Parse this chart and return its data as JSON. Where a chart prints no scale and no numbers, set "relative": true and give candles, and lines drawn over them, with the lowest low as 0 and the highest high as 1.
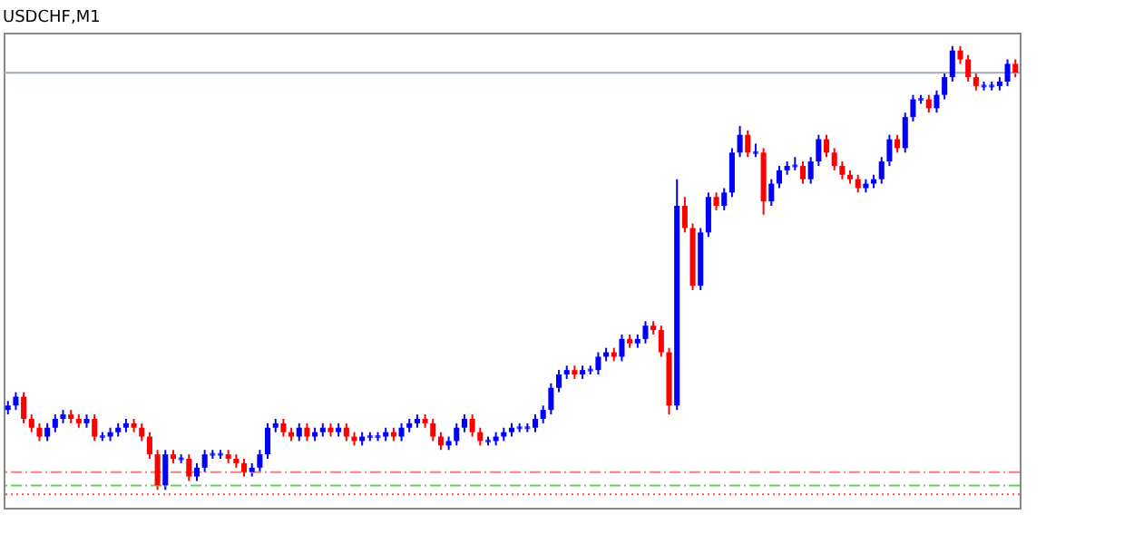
{
  "chart_data": {
    "type": "candlestick",
    "title": "USDCHF,M1",
    "relative": true,
    "categories": [
      null,
      null,
      null,
      null,
      null,
      null,
      null,
      null,
      null,
      null,
      null,
      null,
      null,
      null,
      null,
      null,
      null,
      null,
      null,
      null,
      null,
      null,
      null,
      null,
      null,
      null,
      null,
      null,
      null,
      null,
      null,
      null,
      null,
      null,
      null,
      null,
      null,
      null,
      null,
      null,
      null,
      null,
      null,
      null,
      null,
      null,
      null,
      null,
      null,
      null,
      null,
      null,
      null,
      null,
      null,
      null,
      null,
      null,
      null,
      null,
      null,
      null,
      null,
      null,
      null,
      null,
      null,
      null,
      null,
      null,
      null,
      null,
      null,
      null,
      null,
      null,
      null,
      null,
      null,
      null,
      null,
      null,
      null,
      null,
      null,
      null,
      null,
      null,
      null,
      null,
      null,
      null,
      null,
      null,
      null,
      null,
      null,
      null,
      null,
      null,
      null,
      null,
      null,
      null,
      null,
      null,
      null,
      null,
      null,
      null,
      null,
      null,
      null,
      null,
      null,
      null,
      null,
      null,
      null,
      null,
      null,
      null,
      null,
      null,
      null,
      null,
      null,
      null,
      null
    ],
    "ohlc": [
      [
        0.18,
        0.2,
        0.17,
        0.19
      ],
      [
        0.19,
        0.22,
        0.18,
        0.21
      ],
      [
        0.21,
        0.22,
        0.15,
        0.16
      ],
      [
        0.16,
        0.17,
        0.13,
        0.14
      ],
      [
        0.14,
        0.15,
        0.11,
        0.12
      ],
      [
        0.12,
        0.15,
        0.11,
        0.14
      ],
      [
        0.14,
        0.17,
        0.13,
        0.16
      ],
      [
        0.16,
        0.18,
        0.15,
        0.17
      ],
      [
        0.17,
        0.18,
        0.15,
        0.16
      ],
      [
        0.16,
        0.17,
        0.14,
        0.15
      ],
      [
        0.15,
        0.17,
        0.14,
        0.16
      ],
      [
        0.16,
        0.17,
        0.11,
        0.12
      ],
      [
        0.12,
        0.13,
        0.11,
        0.12
      ],
      [
        0.12,
        0.14,
        0.11,
        0.13
      ],
      [
        0.13,
        0.15,
        0.12,
        0.14
      ],
      [
        0.14,
        0.16,
        0.13,
        0.15
      ],
      [
        0.15,
        0.16,
        0.13,
        0.14
      ],
      [
        0.14,
        0.15,
        0.11,
        0.12
      ],
      [
        0.12,
        0.13,
        0.07,
        0.08
      ],
      [
        0.08,
        0.09,
        0.0,
        0.01
      ],
      [
        0.01,
        0.09,
        0.0,
        0.08
      ],
      [
        0.08,
        0.09,
        0.06,
        0.07
      ],
      [
        0.07,
        0.08,
        0.06,
        0.07
      ],
      [
        0.07,
        0.08,
        0.02,
        0.03
      ],
      [
        0.03,
        0.06,
        0.02,
        0.05
      ],
      [
        0.05,
        0.09,
        0.04,
        0.08
      ],
      [
        0.08,
        0.09,
        0.07,
        0.08
      ],
      [
        0.08,
        0.09,
        0.07,
        0.08
      ],
      [
        0.08,
        0.09,
        0.06,
        0.07
      ],
      [
        0.07,
        0.08,
        0.05,
        0.06
      ],
      [
        0.06,
        0.07,
        0.03,
        0.04
      ],
      [
        0.04,
        0.06,
        0.03,
        0.05
      ],
      [
        0.05,
        0.09,
        0.04,
        0.08
      ],
      [
        0.08,
        0.15,
        0.07,
        0.14
      ],
      [
        0.14,
        0.16,
        0.13,
        0.15
      ],
      [
        0.15,
        0.16,
        0.12,
        0.13
      ],
      [
        0.13,
        0.14,
        0.11,
        0.12
      ],
      [
        0.12,
        0.15,
        0.11,
        0.14
      ],
      [
        0.14,
        0.15,
        0.11,
        0.12
      ],
      [
        0.12,
        0.14,
        0.11,
        0.13
      ],
      [
        0.13,
        0.15,
        0.12,
        0.14
      ],
      [
        0.14,
        0.15,
        0.12,
        0.13
      ],
      [
        0.13,
        0.15,
        0.12,
        0.14
      ],
      [
        0.14,
        0.15,
        0.11,
        0.12
      ],
      [
        0.12,
        0.13,
        0.1,
        0.11
      ],
      [
        0.11,
        0.13,
        0.1,
        0.12
      ],
      [
        0.12,
        0.13,
        0.11,
        0.12
      ],
      [
        0.12,
        0.13,
        0.11,
        0.12
      ],
      [
        0.12,
        0.14,
        0.11,
        0.13
      ],
      [
        0.13,
        0.14,
        0.11,
        0.12
      ],
      [
        0.12,
        0.15,
        0.11,
        0.14
      ],
      [
        0.14,
        0.16,
        0.13,
        0.15
      ],
      [
        0.15,
        0.17,
        0.14,
        0.16
      ],
      [
        0.16,
        0.17,
        0.14,
        0.15
      ],
      [
        0.15,
        0.16,
        0.11,
        0.12
      ],
      [
        0.12,
        0.13,
        0.09,
        0.1
      ],
      [
        0.1,
        0.12,
        0.09,
        0.11
      ],
      [
        0.11,
        0.15,
        0.1,
        0.14
      ],
      [
        0.14,
        0.17,
        0.13,
        0.16
      ],
      [
        0.16,
        0.17,
        0.12,
        0.13
      ],
      [
        0.13,
        0.14,
        0.1,
        0.11
      ],
      [
        0.11,
        0.12,
        0.1,
        0.11
      ],
      [
        0.11,
        0.13,
        0.1,
        0.12
      ],
      [
        0.12,
        0.14,
        0.11,
        0.13
      ],
      [
        0.13,
        0.15,
        0.12,
        0.14
      ],
      [
        0.14,
        0.15,
        0.13,
        0.14
      ],
      [
        0.14,
        0.15,
        0.13,
        0.14
      ],
      [
        0.14,
        0.17,
        0.13,
        0.16
      ],
      [
        0.16,
        0.19,
        0.15,
        0.18
      ],
      [
        0.18,
        0.24,
        0.17,
        0.23
      ],
      [
        0.23,
        0.27,
        0.22,
        0.26
      ],
      [
        0.26,
        0.28,
        0.25,
        0.27
      ],
      [
        0.27,
        0.28,
        0.25,
        0.26
      ],
      [
        0.26,
        0.28,
        0.25,
        0.27
      ],
      [
        0.27,
        0.28,
        0.26,
        0.27
      ],
      [
        0.27,
        0.31,
        0.26,
        0.3
      ],
      [
        0.3,
        0.32,
        0.29,
        0.31
      ],
      [
        0.31,
        0.32,
        0.29,
        0.3
      ],
      [
        0.3,
        0.35,
        0.29,
        0.34
      ],
      [
        0.34,
        0.35,
        0.32,
        0.33
      ],
      [
        0.33,
        0.35,
        0.32,
        0.34
      ],
      [
        0.34,
        0.38,
        0.33,
        0.37
      ],
      [
        0.37,
        0.38,
        0.35,
        0.36
      ],
      [
        0.36,
        0.37,
        0.3,
        0.31
      ],
      [
        0.31,
        0.32,
        0.17,
        0.19
      ],
      [
        0.19,
        0.7,
        0.18,
        0.64
      ],
      [
        0.64,
        0.66,
        0.58,
        0.59
      ],
      [
        0.59,
        0.6,
        0.45,
        0.46
      ],
      [
        0.46,
        0.59,
        0.45,
        0.58
      ],
      [
        0.58,
        0.67,
        0.57,
        0.66
      ],
      [
        0.66,
        0.67,
        0.63,
        0.64
      ],
      [
        0.64,
        0.68,
        0.63,
        0.67
      ],
      [
        0.67,
        0.77,
        0.66,
        0.76
      ],
      [
        0.76,
        0.82,
        0.75,
        0.8
      ],
      [
        0.8,
        0.81,
        0.75,
        0.76
      ],
      [
        0.76,
        0.78,
        0.75,
        0.76
      ],
      [
        0.76,
        0.77,
        0.62,
        0.65
      ],
      [
        0.65,
        0.7,
        0.64,
        0.69
      ],
      [
        0.69,
        0.73,
        0.68,
        0.72
      ],
      [
        0.72,
        0.74,
        0.71,
        0.73
      ],
      [
        0.73,
        0.75,
        0.72,
        0.73
      ],
      [
        0.73,
        0.74,
        0.69,
        0.7
      ],
      [
        0.7,
        0.75,
        0.69,
        0.74
      ],
      [
        0.74,
        0.8,
        0.73,
        0.79
      ],
      [
        0.79,
        0.8,
        0.75,
        0.76
      ],
      [
        0.76,
        0.77,
        0.72,
        0.73
      ],
      [
        0.73,
        0.74,
        0.7,
        0.71
      ],
      [
        0.71,
        0.72,
        0.69,
        0.7
      ],
      [
        0.7,
        0.71,
        0.67,
        0.68
      ],
      [
        0.68,
        0.7,
        0.67,
        0.69
      ],
      [
        0.69,
        0.71,
        0.68,
        0.7
      ],
      [
        0.7,
        0.75,
        0.69,
        0.74
      ],
      [
        0.74,
        0.8,
        0.73,
        0.79
      ],
      [
        0.79,
        0.8,
        0.76,
        0.77
      ],
      [
        0.77,
        0.85,
        0.76,
        0.84
      ],
      [
        0.84,
        0.89,
        0.83,
        0.88
      ],
      [
        0.88,
        0.89,
        0.87,
        0.88
      ],
      [
        0.88,
        0.89,
        0.85,
        0.86
      ],
      [
        0.86,
        0.9,
        0.85,
        0.89
      ],
      [
        0.89,
        0.94,
        0.88,
        0.93
      ],
      [
        0.93,
        1.0,
        0.92,
        0.99
      ],
      [
        0.99,
        1.0,
        0.96,
        0.97
      ],
      [
        0.97,
        0.98,
        0.92,
        0.93
      ],
      [
        0.93,
        0.94,
        0.9,
        0.91
      ],
      [
        0.91,
        0.92,
        0.9,
        0.91
      ],
      [
        0.91,
        0.92,
        0.9,
        0.91
      ],
      [
        0.91,
        0.93,
        0.9,
        0.92
      ],
      [
        0.92,
        0.97,
        0.91,
        0.96
      ],
      [
        0.96,
        0.97,
        0.93,
        0.94
      ]
    ],
    "ref_lines": [
      {
        "axis": "y",
        "value": 0.94,
        "color": "#a0aab4",
        "line_style": "solid"
      },
      {
        "axis": "y",
        "value": 0.04,
        "color": "#f08080",
        "line_style": "dashed"
      },
      {
        "axis": "y",
        "value": 0.01,
        "color": "#66cc66",
        "line_style": "dashed"
      },
      {
        "axis": "y",
        "value": -0.01,
        "color": "#ff5050",
        "line_style": "dotted"
      }
    ]
  }
}
